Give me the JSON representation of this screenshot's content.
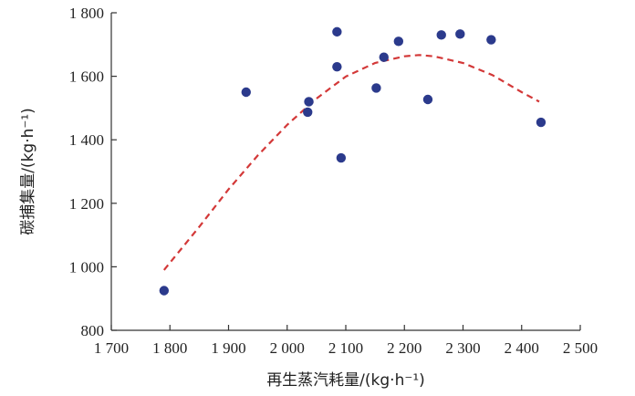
{
  "chart_data": {
    "type": "scatter",
    "title": "",
    "xlabel": "再生蒸汽耗量/(kg·h⁻¹)",
    "ylabel": "碳捕集量/(kg·h⁻¹)",
    "xlim": [
      1700,
      2500
    ],
    "ylim": [
      800,
      1800
    ],
    "x_ticks": [
      1700,
      1800,
      1900,
      2000,
      2100,
      2200,
      2300,
      2400,
      2500
    ],
    "y_ticks": [
      800,
      1000,
      1200,
      1400,
      1600,
      1800
    ],
    "x_tick_labels": [
      "1 700",
      "1 800",
      "1 900",
      "2 000",
      "2 100",
      "2 200",
      "2 300",
      "2 400",
      "2 500"
    ],
    "y_tick_labels": [
      "800",
      "1 000",
      "1 200",
      "1 400",
      "1 600",
      "1 800"
    ],
    "grid": false,
    "legend": "none",
    "points": [
      {
        "x": 1790,
        "y": 925
      },
      {
        "x": 1930,
        "y": 1550
      },
      {
        "x": 2035,
        "y": 1487
      },
      {
        "x": 2037,
        "y": 1520
      },
      {
        "x": 2085,
        "y": 1740
      },
      {
        "x": 2085,
        "y": 1630
      },
      {
        "x": 2092,
        "y": 1343
      },
      {
        "x": 2152,
        "y": 1563
      },
      {
        "x": 2165,
        "y": 1660
      },
      {
        "x": 2190,
        "y": 1710
      },
      {
        "x": 2240,
        "y": 1527
      },
      {
        "x": 2263,
        "y": 1730
      },
      {
        "x": 2295,
        "y": 1733
      },
      {
        "x": 2348,
        "y": 1715
      },
      {
        "x": 2433,
        "y": 1455
      }
    ],
    "fit_curve": {
      "style": "dashed",
      "x": [
        1790,
        1850,
        1900,
        1950,
        2000,
        2050,
        2100,
        2150,
        2200,
        2225,
        2250,
        2300,
        2350,
        2400,
        2430
      ],
      "y": [
        990,
        1126,
        1244,
        1351,
        1447,
        1530,
        1599,
        1642,
        1663,
        1667,
        1663,
        1642,
        1604,
        1550,
        1520
      ]
    },
    "colors": {
      "points": "#2b3a8c",
      "fit_line": "#d33838",
      "axis": "#333333"
    }
  }
}
